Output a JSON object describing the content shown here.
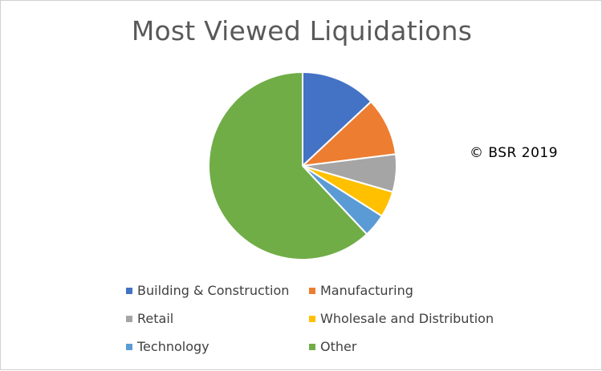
{
  "chart_data": {
    "type": "pie",
    "title": "Most Viewed Liquidations",
    "start_angle_deg": 0,
    "direction": "clockwise",
    "legend_position": "bottom",
    "slices": [
      {
        "name": "Building & Construction",
        "value": 13,
        "color": "#4472C4"
      },
      {
        "name": "Manufacturing",
        "value": 10,
        "color": "#ED7D31"
      },
      {
        "name": "Retail",
        "value": 6.5,
        "color": "#A5A5A5"
      },
      {
        "name": "Wholesale and Distribution",
        "value": 4.5,
        "color": "#FFC000"
      },
      {
        "name": "Technology",
        "value": 4,
        "color": "#5B9BD5"
      },
      {
        "name": "Other",
        "value": 62,
        "color": "#70AD47"
      }
    ]
  },
  "annotation": "© BSR 2019"
}
